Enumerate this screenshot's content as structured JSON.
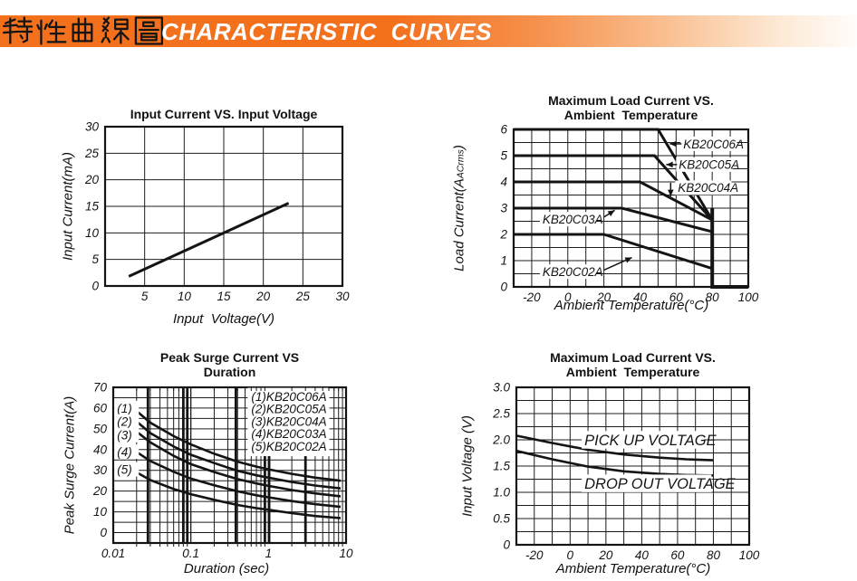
{
  "header": {
    "title_zh": "特性曲線圖",
    "title_en": "CHARACTERISTIC  CURVES",
    "bar_color": "#f3701d",
    "title_en_color": "#ffffff"
  },
  "chart_data": [
    {
      "id": "input-current-vs-input-voltage",
      "type": "line",
      "title": "Input Current VS. Input Voltage",
      "xlabel": "Input  Voltage(V)",
      "ylabel": "Input Current(mA)",
      "xscale": "linear",
      "xlim": [
        0,
        30
      ],
      "ylim": [
        0,
        30
      ],
      "xgrid_step": 5,
      "ygrid_step": 5,
      "grid": true,
      "legend_position": "none",
      "xticks": [
        [
          5,
          "5"
        ],
        [
          10,
          "10"
        ],
        [
          15,
          "15"
        ],
        [
          20,
          "20"
        ],
        [
          25,
          "25"
        ],
        [
          30,
          "30"
        ]
      ],
      "yticks": [
        [
          0,
          "0"
        ],
        [
          5,
          "5"
        ],
        [
          10,
          "10"
        ],
        [
          15,
          "15"
        ],
        [
          20,
          "20"
        ],
        [
          25,
          "25"
        ],
        [
          30,
          "30"
        ]
      ],
      "series": [
        {
          "name": "input-current-line",
          "lw": 3,
          "points": [
            [
              3,
              1.8
            ],
            [
              23.2,
              15.6
            ]
          ]
        }
      ],
      "annotations": []
    },
    {
      "id": "max-load-current-vs-ambient-temperature",
      "type": "line",
      "title": "Maximum Load Current VS.",
      "subtitle": "Ambient  Temperature",
      "xlabel": "Ambient Temperature(°C)",
      "ylabel": "Load Current(A",
      "ylabel_sub": "ACrms",
      "ylabel_end": ")",
      "xscale": "linear",
      "xlim": [
        -30,
        100
      ],
      "ylim": [
        0,
        6
      ],
      "xgrid_step": 10,
      "ygrid_step": 0.5,
      "grid": true,
      "xticks": [
        [
          -20,
          "-20"
        ],
        [
          0,
          "0"
        ],
        [
          20,
          "20"
        ],
        [
          40,
          "40"
        ],
        [
          60,
          "60"
        ],
        [
          80,
          "80"
        ],
        [
          100,
          "100"
        ]
      ],
      "yticks": [
        [
          0,
          "0"
        ],
        [
          1,
          "1"
        ],
        [
          2,
          "2"
        ],
        [
          3,
          "3"
        ],
        [
          4,
          "4"
        ],
        [
          5,
          "5"
        ],
        [
          6,
          "6"
        ]
      ],
      "series": [
        {
          "name": "KB20C06A",
          "lw": 3,
          "points": [
            [
              -30,
              6
            ],
            [
              50,
              6
            ],
            [
              80,
              2.55
            ]
          ]
        },
        {
          "name": "KB20C05A",
          "lw": 3,
          "points": [
            [
              -30,
              5
            ],
            [
              48,
              5
            ],
            [
              80,
              2.55
            ]
          ]
        },
        {
          "name": "KB20C04A",
          "lw": 3,
          "points": [
            [
              -30,
              4
            ],
            [
              40,
              4
            ],
            [
              80,
              2.55
            ]
          ]
        },
        {
          "name": "KB20C03A",
          "lw": 3,
          "points": [
            [
              -30,
              3
            ],
            [
              30,
              3
            ],
            [
              80,
              2.1
            ]
          ]
        },
        {
          "name": "KB20C02A",
          "lw": 3,
          "points": [
            [
              -30,
              2
            ],
            [
              20,
              2
            ],
            [
              80,
              0.7
            ]
          ]
        },
        {
          "name": "thermal-cutoff",
          "lw": 4,
          "points": [
            [
              80,
              3.0
            ],
            [
              80,
              0
            ],
            [
              100,
              0
            ]
          ]
        }
      ],
      "annotations": [
        {
          "text": "KB20C06A",
          "x": 64,
          "y": 5.45,
          "fs": 13.5,
          "arrow": [
            63,
            5.45,
            56.5,
            5.45
          ]
        },
        {
          "text": "KB20C05A",
          "x": 61.5,
          "y": 4.66,
          "fs": 13.5,
          "arrow": [
            60.5,
            4.66,
            54.5,
            4.66
          ]
        },
        {
          "text": "KB20C04A",
          "x": 61,
          "y": 3.78,
          "fs": 13.5,
          "arrow": [
            57,
            3.97,
            57,
            3.45
          ]
        },
        {
          "text": "KB20C03A",
          "x": -14,
          "y": 2.58,
          "fs": 13.5,
          "arrow": [
            20,
            2.66,
            26,
            2.92
          ]
        },
        {
          "text": "KB20C02A",
          "x": -14,
          "y": 0.58,
          "fs": 13.5,
          "arrow": [
            20,
            0.64,
            35.5,
            1.12
          ]
        }
      ]
    },
    {
      "id": "peak-surge-current-vs-duration",
      "type": "line",
      "title": "Peak Surge Current VS",
      "subtitle": "Duration",
      "xlabel": "Duration (sec)",
      "ylabel": "Peak Surge Current(A)",
      "xscale": "log",
      "xlim": [
        0.01,
        10
      ],
      "ylim": [
        -5,
        70
      ],
      "ygrid_step": 5,
      "grid": true,
      "xgrid_thick": [
        0.028,
        0.08,
        0.09,
        0.38,
        0.9,
        1.02,
        3.0
      ],
      "xticks": [
        [
          0.01,
          "0.01"
        ],
        [
          0.1,
          "0.1"
        ],
        [
          1,
          "1"
        ],
        [
          10,
          "10"
        ]
      ],
      "yticks": [
        [
          0,
          "0"
        ],
        [
          10,
          "10"
        ],
        [
          20,
          "20"
        ],
        [
          30,
          "30"
        ],
        [
          40,
          "40"
        ],
        [
          50,
          "50"
        ],
        [
          60,
          "60"
        ],
        [
          70,
          "70"
        ]
      ],
      "series": [
        {
          "name": "KB20C06A",
          "lw": 2.6,
          "points": [
            [
              0.018,
              60
            ],
            [
              0.03,
              53
            ],
            [
              0.06,
              46.5
            ],
            [
              0.1,
              42.5
            ],
            [
              0.2,
              38
            ],
            [
              0.4,
              34.2
            ],
            [
              0.7,
              31.8
            ],
            [
              1,
              30.5
            ],
            [
              2,
              28.3
            ],
            [
              4,
              26.5
            ],
            [
              8.5,
              25
            ]
          ]
        },
        {
          "name": "KB20C05A",
          "lw": 2.6,
          "points": [
            [
              0.018,
              55
            ],
            [
              0.03,
              48
            ],
            [
              0.06,
              41.5
            ],
            [
              0.1,
              37.5
            ],
            [
              0.2,
              33.5
            ],
            [
              0.4,
              29.8
            ],
            [
              0.7,
              27.6
            ],
            [
              1,
              26.5
            ],
            [
              2,
              24.4
            ],
            [
              4,
              22.7
            ],
            [
              8.5,
              21.3
            ]
          ]
        },
        {
          "name": "KB20C04A",
          "lw": 2.6,
          "points": [
            [
              0.018,
              50
            ],
            [
              0.03,
              43.5
            ],
            [
              0.06,
              37
            ],
            [
              0.1,
              33
            ],
            [
              0.2,
              29.2
            ],
            [
              0.4,
              25.8
            ],
            [
              0.7,
              23.7
            ],
            [
              1,
              22.5
            ],
            [
              2,
              20.5
            ],
            [
              4,
              18.9
            ],
            [
              8.5,
              17.5
            ]
          ]
        },
        {
          "name": "KB20C03A",
          "lw": 2.6,
          "points": [
            [
              0.018,
              40
            ],
            [
              0.03,
              34.5
            ],
            [
              0.06,
              29.3
            ],
            [
              0.1,
              26
            ],
            [
              0.2,
              22.8
            ],
            [
              0.4,
              19.9
            ],
            [
              0.7,
              18
            ],
            [
              1,
              17
            ],
            [
              2,
              15.2
            ],
            [
              4,
              13.7
            ],
            [
              8.5,
              12.4
            ]
          ]
        },
        {
          "name": "KB20C02A",
          "lw": 2.6,
          "points": [
            [
              0.018,
              30
            ],
            [
              0.03,
              25.3
            ],
            [
              0.06,
              21
            ],
            [
              0.1,
              18.5
            ],
            [
              0.2,
              15.8
            ],
            [
              0.4,
              13.3
            ],
            [
              0.7,
              11.8
            ],
            [
              1,
              11
            ],
            [
              2,
              9.4
            ],
            [
              4,
              8
            ],
            [
              8.5,
              7
            ]
          ]
        }
      ],
      "annotations": [
        {
          "text": "(1)",
          "x": 0.0112,
          "y": 60,
          "fs": 13.5
        },
        {
          "text": "(2)",
          "x": 0.0112,
          "y": 53.5,
          "fs": 13.5
        },
        {
          "text": "(3)",
          "x": 0.0112,
          "y": 47,
          "fs": 13.5
        },
        {
          "text": "(4)",
          "x": 0.0112,
          "y": 39,
          "fs": 13.5
        },
        {
          "text": "(5)",
          "x": 0.0112,
          "y": 30.5,
          "fs": 13.5
        }
      ],
      "legend": {
        "x": 0.6,
        "y": 66.5,
        "fs": 13.5,
        "line_h": 13.8,
        "items": [
          "(1)KB20C06A",
          "(2)KB20C05A",
          "(3)KB20C04A",
          "(4)KB20C03A",
          "(5)KB20C02A"
        ]
      }
    },
    {
      "id": "input-voltage-vs-ambient-temperature",
      "type": "line",
      "title": "Maximum Load Current VS.",
      "subtitle": "Ambient  Temperature",
      "xlabel": "Ambient Temperature(°C)",
      "ylabel": "Input Voltage (V)",
      "xscale": "linear",
      "xlim": [
        -30,
        100
      ],
      "ylim": [
        0,
        3
      ],
      "xgrid_step": 10,
      "ygrid_step": 0.25,
      "grid": true,
      "xticks": [
        [
          -20,
          "-20"
        ],
        [
          0,
          "0"
        ],
        [
          20,
          "20"
        ],
        [
          40,
          "40"
        ],
        [
          60,
          "60"
        ],
        [
          80,
          "80"
        ],
        [
          100,
          "100"
        ]
      ],
      "yticks": [
        [
          0,
          "0"
        ],
        [
          0.5,
          "0.5"
        ],
        [
          1,
          "1.0"
        ],
        [
          1.5,
          "1.5"
        ],
        [
          2,
          "2.0"
        ],
        [
          2.5,
          "2.5"
        ],
        [
          3,
          "3.0"
        ]
      ],
      "series": [
        {
          "name": "pick-up-voltage",
          "lw": 2.6,
          "points": [
            [
              -30,
              2.08
            ],
            [
              -10,
              1.94
            ],
            [
              10,
              1.81
            ],
            [
              30,
              1.72
            ],
            [
              50,
              1.66
            ],
            [
              65,
              1.63
            ],
            [
              80,
              1.61
            ]
          ]
        },
        {
          "name": "drop-out-voltage",
          "lw": 2.6,
          "points": [
            [
              -30,
              1.79
            ],
            [
              -10,
              1.63
            ],
            [
              10,
              1.49
            ],
            [
              30,
              1.4
            ],
            [
              50,
              1.35
            ],
            [
              65,
              1.33
            ],
            [
              80,
              1.32
            ]
          ]
        }
      ],
      "annotations": [
        {
          "text": "PICK UP VOLTAGE",
          "x": 8,
          "y": 2.0,
          "fs": 16.5
        },
        {
          "text": "DROP OUT VOLTAGE",
          "x": 8,
          "y": 1.17,
          "fs": 16.5
        }
      ]
    }
  ]
}
